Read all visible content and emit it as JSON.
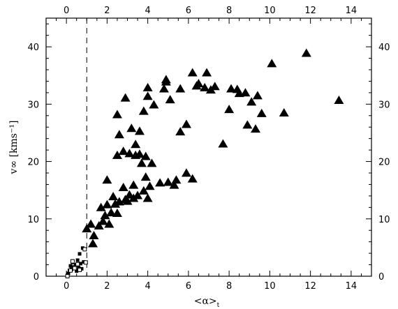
{
  "chart_data": {
    "type": "scatter",
    "title": "",
    "xlabel": "<α>",
    "xlabel_sub": "t",
    "ylabel": "v∞ [kms⁻¹]",
    "xlim": [
      -1.0,
      15.0
    ],
    "ylim": [
      0,
      45
    ],
    "x_ticks": [
      0,
      2,
      4,
      6,
      8,
      10,
      12,
      14
    ],
    "y_ticks": [
      0,
      10,
      20,
      30,
      40
    ],
    "x_tick_labels": [
      "0",
      "2",
      "4",
      "6",
      "8",
      "10",
      "12",
      "14"
    ],
    "y_tick_labels": [
      "0",
      "10",
      "20",
      "30",
      "40"
    ],
    "mirror_ticks": true,
    "grid": false,
    "reference_lines": [
      {
        "orientation": "vertical",
        "x": 1.0,
        "style": "dashed"
      }
    ],
    "series": [
      {
        "marker": "filled-square",
        "color": "#000000",
        "points": [
          [
            0.05,
            0.2
          ],
          [
            0.1,
            0.5
          ],
          [
            0.15,
            1.0
          ],
          [
            0.2,
            1.8
          ],
          [
            0.25,
            1.2
          ],
          [
            0.3,
            2.4
          ],
          [
            0.35,
            1.6
          ],
          [
            0.45,
            2.0
          ],
          [
            0.5,
            0.9
          ],
          [
            0.55,
            2.8
          ],
          [
            0.6,
            1.5
          ],
          [
            0.65,
            3.9
          ],
          [
            0.7,
            2.2
          ],
          [
            0.75,
            1.3
          ],
          [
            0.8,
            4.9
          ],
          [
            0.85,
            2.5
          ]
        ]
      },
      {
        "marker": "open-square",
        "color": "#000000",
        "points": [
          [
            0.05,
            0.0
          ],
          [
            0.2,
            1.0
          ],
          [
            0.3,
            2.6
          ],
          [
            0.4,
            1.4
          ],
          [
            0.55,
            2.1
          ],
          [
            0.65,
            1.1
          ],
          [
            0.9,
            4.7
          ],
          [
            0.95,
            2.4
          ]
        ]
      },
      {
        "marker": "filled-triangle",
        "color": "#000000",
        "points": [
          [
            1.0,
            8.2
          ],
          [
            1.2,
            9.0
          ],
          [
            1.3,
            5.6
          ],
          [
            1.35,
            7.0
          ],
          [
            1.6,
            8.7
          ],
          [
            1.7,
            11.9
          ],
          [
            1.8,
            9.5
          ],
          [
            1.9,
            10.5
          ],
          [
            2.0,
            12.4
          ],
          [
            2.0,
            16.7
          ],
          [
            2.1,
            9.0
          ],
          [
            2.2,
            11.0
          ],
          [
            2.3,
            13.8
          ],
          [
            2.4,
            12.5
          ],
          [
            2.5,
            10.9
          ],
          [
            2.5,
            21.0
          ],
          [
            2.5,
            28.1
          ],
          [
            2.6,
            24.6
          ],
          [
            2.6,
            12.9
          ],
          [
            2.8,
            21.7
          ],
          [
            2.8,
            15.4
          ],
          [
            2.9,
            13.3
          ],
          [
            2.9,
            31.0
          ],
          [
            3.0,
            13.0
          ],
          [
            3.1,
            14.1
          ],
          [
            3.1,
            21.3
          ],
          [
            3.2,
            25.7
          ],
          [
            3.3,
            13.5
          ],
          [
            3.3,
            15.8
          ],
          [
            3.4,
            21.0
          ],
          [
            3.4,
            22.9
          ],
          [
            3.5,
            14.0
          ],
          [
            3.6,
            21.2
          ],
          [
            3.6,
            25.2
          ],
          [
            3.7,
            19.6
          ],
          [
            3.8,
            14.8
          ],
          [
            3.8,
            28.7
          ],
          [
            3.9,
            17.2
          ],
          [
            3.9,
            20.8
          ],
          [
            4.0,
            13.5
          ],
          [
            4.0,
            31.3
          ],
          [
            4.0,
            32.8
          ],
          [
            4.1,
            15.6
          ],
          [
            4.2,
            19.6
          ],
          [
            4.3,
            29.8
          ],
          [
            4.6,
            16.2
          ],
          [
            4.8,
            32.6
          ],
          [
            4.9,
            33.8
          ],
          [
            4.9,
            34.2
          ],
          [
            5.0,
            16.3
          ],
          [
            5.1,
            30.7
          ],
          [
            5.3,
            15.8
          ],
          [
            5.4,
            16.7
          ],
          [
            5.6,
            32.6
          ],
          [
            5.6,
            25.1
          ],
          [
            5.9,
            26.4
          ],
          [
            5.9,
            17.9
          ],
          [
            6.2,
            16.9
          ],
          [
            6.2,
            35.4
          ],
          [
            6.4,
            33.1
          ],
          [
            6.5,
            33.5
          ],
          [
            6.8,
            32.8
          ],
          [
            6.9,
            35.4
          ],
          [
            7.1,
            32.4
          ],
          [
            7.3,
            33.0
          ],
          [
            7.7,
            23.0
          ],
          [
            8.0,
            29.0
          ],
          [
            8.1,
            32.6
          ],
          [
            8.4,
            32.5
          ],
          [
            8.5,
            31.8
          ],
          [
            8.8,
            31.9
          ],
          [
            8.9,
            26.3
          ],
          [
            9.1,
            30.3
          ],
          [
            9.3,
            25.6
          ],
          [
            9.4,
            31.4
          ],
          [
            9.6,
            28.3
          ],
          [
            10.1,
            37.0
          ],
          [
            10.7,
            28.4
          ],
          [
            11.8,
            38.8
          ],
          [
            13.4,
            30.6
          ]
        ]
      }
    ]
  }
}
